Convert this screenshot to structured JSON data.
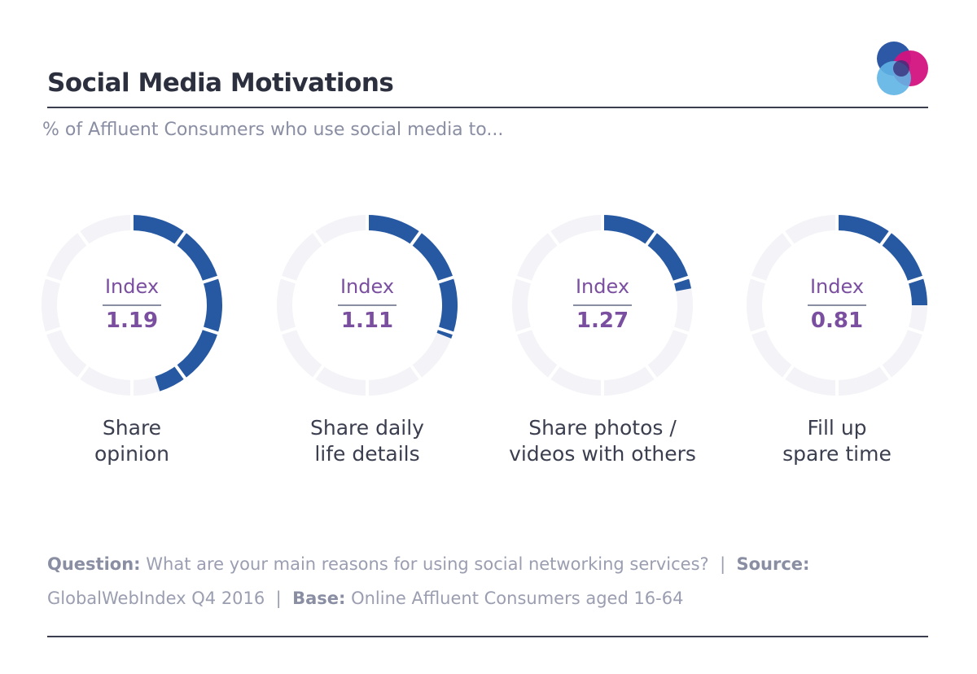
{
  "title": "Social Media Motivations",
  "subtitle": "% of Affluent Consumers who use social media to...",
  "colors": {
    "fill": "#2759a3",
    "track": "#f3f3f8",
    "index_text": "#7b4fa0",
    "logo": [
      "#2d58a6",
      "#d4137f",
      "#5fb4e6"
    ]
  },
  "chart_data": {
    "type": "donut",
    "unit": "%",
    "index_label": "Index",
    "categories": [
      "Share opinion",
      "Share daily life details",
      "Share  photos / videos with others",
      "Fill up spare time"
    ],
    "category_lines": [
      [
        "Share",
        "opinion"
      ],
      [
        "Share daily",
        "life details"
      ],
      [
        "Share  photos /",
        "videos with others"
      ],
      [
        "Fill up",
        "spare time"
      ]
    ],
    "values": [
      45,
      31,
      22,
      25
    ],
    "index": [
      "1.19",
      "1.11",
      "1.27",
      "0.81"
    ],
    "range": [
      0,
      100
    ],
    "segments": 10
  },
  "footnote": {
    "question_label": "Question:",
    "question": "What are your main reasons for using social networking services?",
    "sep": "|",
    "source_label": "Source:",
    "source": "GlobalWebIndex Q4 2016",
    "base_label": "Base:",
    "base": "Online Affluent Consumers aged 16-64"
  }
}
